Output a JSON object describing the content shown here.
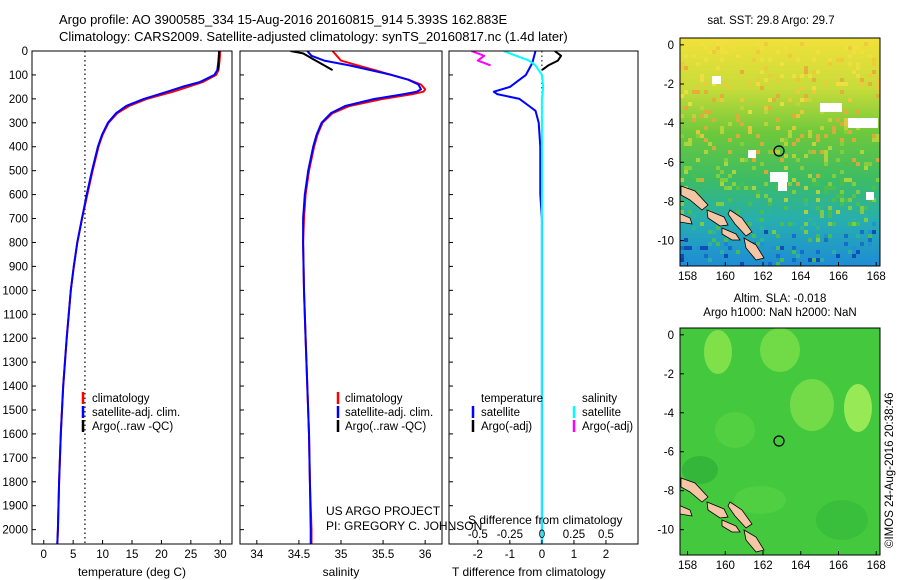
{
  "header": {
    "line1": "Argo profile: AO 3900585_334 15-Aug-2016 20160815_914 5.393S 162.883E",
    "line2": "Climatology: CARS2009. Satellite-adjusted climatology: synTS_20160817.nc (1.4d later)"
  },
  "depth_ticks": [
    "0",
    "100",
    "200",
    "300",
    "400",
    "500",
    "600",
    "700",
    "800",
    "900",
    "1000",
    "1100",
    "1200",
    "1300",
    "1400",
    "1500",
    "1600",
    "1700",
    "1800",
    "1900",
    "2000"
  ],
  "colors": {
    "climatology": "#ff0000",
    "satellite": "#0000ff",
    "argo": "#000000",
    "sat_salinity": "#00ffff",
    "argo_salinity": "#ff00ff"
  },
  "temperature_panel": {
    "xlabel": "temperature (deg C)",
    "x_ticks": [
      "0",
      "5",
      "10",
      "15",
      "20",
      "25",
      "30"
    ],
    "legend": [
      {
        "label": "climatology",
        "color": "#ff0000"
      },
      {
        "label": "satellite-adj. clim.",
        "color": "#0000ff"
      },
      {
        "label": "Argo(..raw -QC)",
        "color": "#000000"
      }
    ]
  },
  "salinity_panel": {
    "xlabel": "salinity",
    "x_ticks": [
      "34",
      "34.5",
      "35",
      "35.5",
      "36"
    ],
    "legend": [
      {
        "label": "climatology",
        "color": "#ff0000"
      },
      {
        "label": "satellite-adj. clim.",
        "color": "#0000ff"
      },
      {
        "label": "Argo(..raw -QC)",
        "color": "#000000"
      }
    ],
    "note_line1": "US ARGO PROJECT",
    "note_line2": "PI: GREGORY C. JOHNSON"
  },
  "difference_panel": {
    "top_label": "S difference from climatology",
    "bottom_label": "T difference from climatology",
    "s_ticks": [
      "-0.5",
      "-0.25",
      "0",
      "0.25",
      "0.5"
    ],
    "t_ticks": [
      "-2",
      "-1",
      "0",
      "1",
      "2"
    ],
    "legend_temperature": {
      "heading": "temperature",
      "items": [
        {
          "label": "satellite",
          "color": "#0000ff"
        },
        {
          "label": "Argo(-adj)",
          "color": "#000000"
        }
      ]
    },
    "legend_salinity": {
      "heading": "salinity",
      "items": [
        {
          "label": "satellite",
          "color": "#00ffff"
        },
        {
          "label": "Argo(-adj)",
          "color": "#ff00ff"
        }
      ]
    }
  },
  "sst_map": {
    "title": "sat. SST: 29.8 Argo: 29.7",
    "lon_ticks": [
      "158",
      "160",
      "162",
      "164",
      "166",
      "168"
    ],
    "lat_ticks": [
      "0",
      "-2",
      "-4",
      "-6",
      "-8",
      "-10"
    ]
  },
  "sla_map": {
    "title_line1": "Altim. SLA: -0.018",
    "title_line2": "Argo h1000: NaN h2000: NaN",
    "lon_ticks": [
      "158",
      "160",
      "162",
      "164",
      "166",
      "168"
    ],
    "lat_ticks": [
      "0",
      "-2",
      "-4",
      "-6",
      "-8",
      "-10"
    ]
  },
  "stamp": "©IMOS 24-Aug-2016 20:38:46",
  "chart_data": [
    {
      "type": "line",
      "title": "",
      "xlabel": "temperature (deg C)",
      "ylabel": "",
      "xlim": [
        -2,
        32
      ],
      "ylim": [
        2060,
        0
      ],
      "y_ticks": [
        0,
        100,
        200,
        300,
        400,
        500,
        600,
        700,
        800,
        900,
        1000,
        1100,
        1200,
        1300,
        1400,
        1500,
        1600,
        1700,
        1800,
        1900,
        2000
      ],
      "reference_x": 7,
      "series": [
        {
          "name": "climatology",
          "color": "#ff0000",
          "depth": [
            0,
            40,
            80,
            100,
            130,
            150,
            170,
            200,
            230,
            260,
            300,
            350,
            400,
            500,
            600,
            700,
            800,
            900,
            1000,
            1200,
            1400,
            1600,
            1800,
            2000,
            2060
          ],
          "values": [
            30,
            29.9,
            29.7,
            29.3,
            27,
            24.5,
            22,
            17.5,
            14.5,
            12.5,
            11,
            10,
            9.3,
            8.3,
            7.4,
            6.5,
            5.7,
            5.1,
            4.6,
            3.9,
            3.3,
            2.9,
            2.6,
            2.4,
            2.3
          ]
        },
        {
          "name": "satellite-adj. clim.",
          "color": "#0000ff",
          "depth": [
            0,
            40,
            80,
            100,
            130,
            150,
            170,
            200,
            230,
            260,
            300,
            350,
            400,
            500,
            600,
            700,
            800,
            900,
            1000,
            1200,
            1400,
            1600,
            1800,
            2000,
            2060
          ],
          "values": [
            29.8,
            29.7,
            29.5,
            29,
            26.5,
            23.5,
            21,
            17,
            14,
            12.3,
            10.9,
            9.9,
            9.2,
            8.2,
            7.3,
            6.5,
            5.7,
            5.1,
            4.6,
            3.9,
            3.3,
            2.9,
            2.6,
            2.4,
            2.3
          ]
        },
        {
          "name": "Argo(..raw -QC)",
          "color": "#000000",
          "depth": [
            0,
            20,
            40,
            60,
            80
          ],
          "values": [
            29.8,
            29.8,
            29.7,
            29.7,
            29.6
          ]
        }
      ]
    },
    {
      "type": "line",
      "title": "",
      "xlabel": "salinity",
      "ylabel": "",
      "xlim": [
        33.8,
        36.2
      ],
      "ylim": [
        2060,
        0
      ],
      "series": [
        {
          "name": "climatology",
          "color": "#ff0000",
          "depth": [
            0,
            20,
            40,
            60,
            80,
            100,
            120,
            140,
            160,
            170,
            180,
            200,
            230,
            260,
            300,
            350,
            400,
            500,
            600,
            700,
            800,
            1000,
            1200,
            1400,
            1600,
            1800,
            2000,
            2060
          ],
          "values": [
            34.9,
            34.95,
            35.0,
            35.2,
            35.4,
            35.6,
            35.8,
            35.95,
            36.0,
            35.98,
            35.85,
            35.5,
            35.1,
            34.9,
            34.78,
            34.72,
            34.68,
            34.62,
            34.58,
            34.56,
            34.55,
            34.56,
            34.58,
            34.6,
            34.62,
            34.63,
            34.65,
            34.65
          ]
        },
        {
          "name": "satellite-adj. clim.",
          "color": "#0000ff",
          "depth": [
            0,
            20,
            40,
            60,
            80,
            100,
            120,
            140,
            160,
            170,
            180,
            200,
            230,
            260,
            300,
            350,
            400,
            500,
            600,
            700,
            800,
            1000,
            1200,
            1400,
            1600,
            1800,
            2000,
            2060
          ],
          "values": [
            34.6,
            34.65,
            34.8,
            35.1,
            35.35,
            35.6,
            35.8,
            35.92,
            35.95,
            35.9,
            35.75,
            35.4,
            35.05,
            34.88,
            34.77,
            34.71,
            34.67,
            34.61,
            34.57,
            34.55,
            34.55,
            34.56,
            34.58,
            34.6,
            34.62,
            34.63,
            34.64,
            34.64
          ]
        },
        {
          "name": "Argo(..raw -QC)",
          "color": "#000000",
          "depth": [
            0,
            10,
            20,
            30,
            40,
            60,
            80
          ],
          "values": [
            34.4,
            34.55,
            34.6,
            34.65,
            34.7,
            34.8,
            34.9
          ]
        }
      ]
    },
    {
      "type": "line",
      "title": "",
      "xlabel": "T difference from climatology",
      "x2label": "S difference from climatology",
      "ylabel": "",
      "xlim": [
        -2.9,
        3.0
      ],
      "x2lim": [
        -0.725,
        0.75
      ],
      "ylim": [
        2060,
        0
      ],
      "series": [
        {
          "name": "temperature satellite",
          "color": "#0000ff",
          "axis": "T",
          "depth": [
            0,
            50,
            100,
            150,
            170,
            180,
            200,
            230,
            250,
            300,
            400,
            500,
            600,
            700,
            800,
            1000,
            1200,
            1500,
            2000,
            2060
          ],
          "values": [
            -0.2,
            -0.3,
            -0.5,
            -1.0,
            -1.5,
            -1.4,
            -0.7,
            -0.4,
            -0.2,
            -0.1,
            -0.05,
            -0.05,
            -0.05,
            0,
            0,
            0,
            0,
            0,
            0,
            0
          ]
        },
        {
          "name": "temperature Argo(-adj)",
          "color": "#000000",
          "axis": "T",
          "depth": [
            0,
            20,
            40,
            60,
            80
          ],
          "values": [
            0.4,
            0.6,
            0.5,
            0.2,
            0.0
          ]
        },
        {
          "name": "salinity satellite",
          "color": "#00ffff",
          "axis": "S",
          "depth": [
            0,
            20,
            40,
            60,
            100,
            150,
            200,
            300,
            400,
            600,
            800,
            1000,
            1500,
            2000,
            2060
          ],
          "values": [
            -0.3,
            -0.2,
            -0.1,
            -0.05,
            0,
            0.01,
            0,
            0,
            0,
            0,
            0,
            0,
            0,
            0,
            0
          ]
        },
        {
          "name": "salinity Argo(-adj)",
          "color": "#ff00ff",
          "axis": "S",
          "depth": [
            0,
            20,
            40,
            60
          ],
          "values": [
            -0.55,
            -0.45,
            -0.5,
            -0.4
          ]
        }
      ]
    }
  ]
}
